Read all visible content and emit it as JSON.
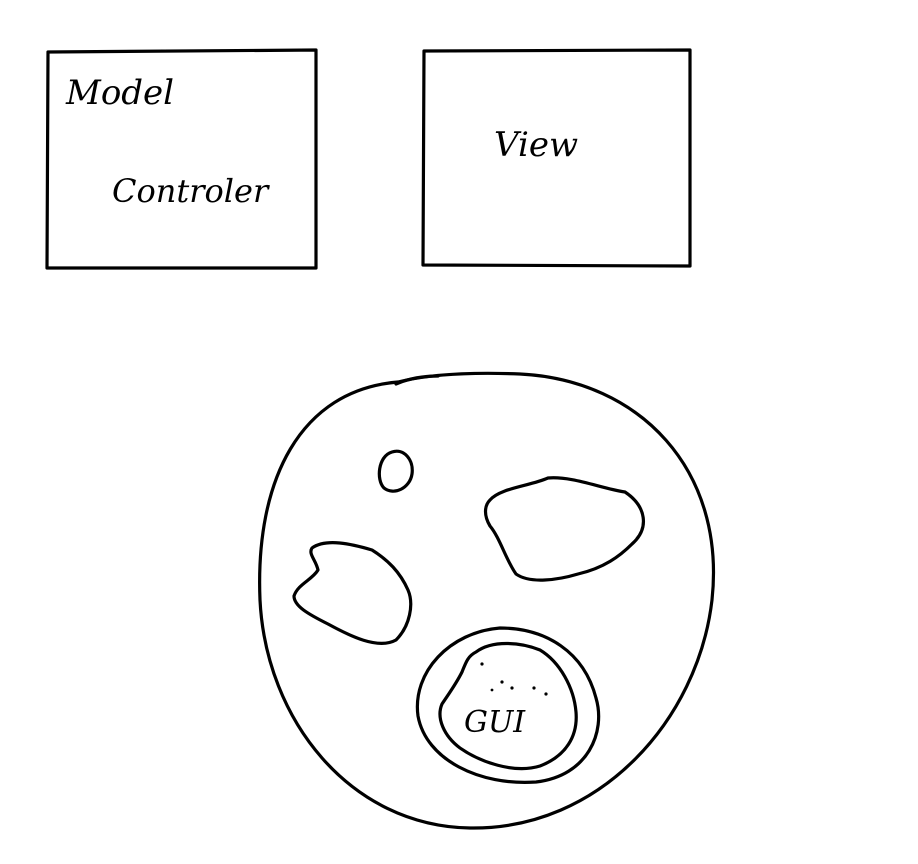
{
  "labels": {
    "model": "Model",
    "controller": "Controler",
    "view": "View",
    "gui": "GUI"
  },
  "colors": {
    "ink": "#000000",
    "background": "#ffffff"
  }
}
